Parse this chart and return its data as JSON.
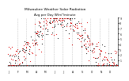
{
  "title": "Milwaukee Weather Solar Radiation",
  "subtitle": "Avg per Day W/m²/minute",
  "ylim": [
    0,
    9
  ],
  "yticks": [
    1,
    2,
    3,
    4,
    5,
    6,
    7,
    8,
    9
  ],
  "background_color": "#ffffff",
  "grid_color": "#b0b0b0",
  "dot_color1": "#dd0000",
  "dot_color2": "#111111",
  "title_fontsize": 3.2,
  "tick_fontsize": 2.2
}
